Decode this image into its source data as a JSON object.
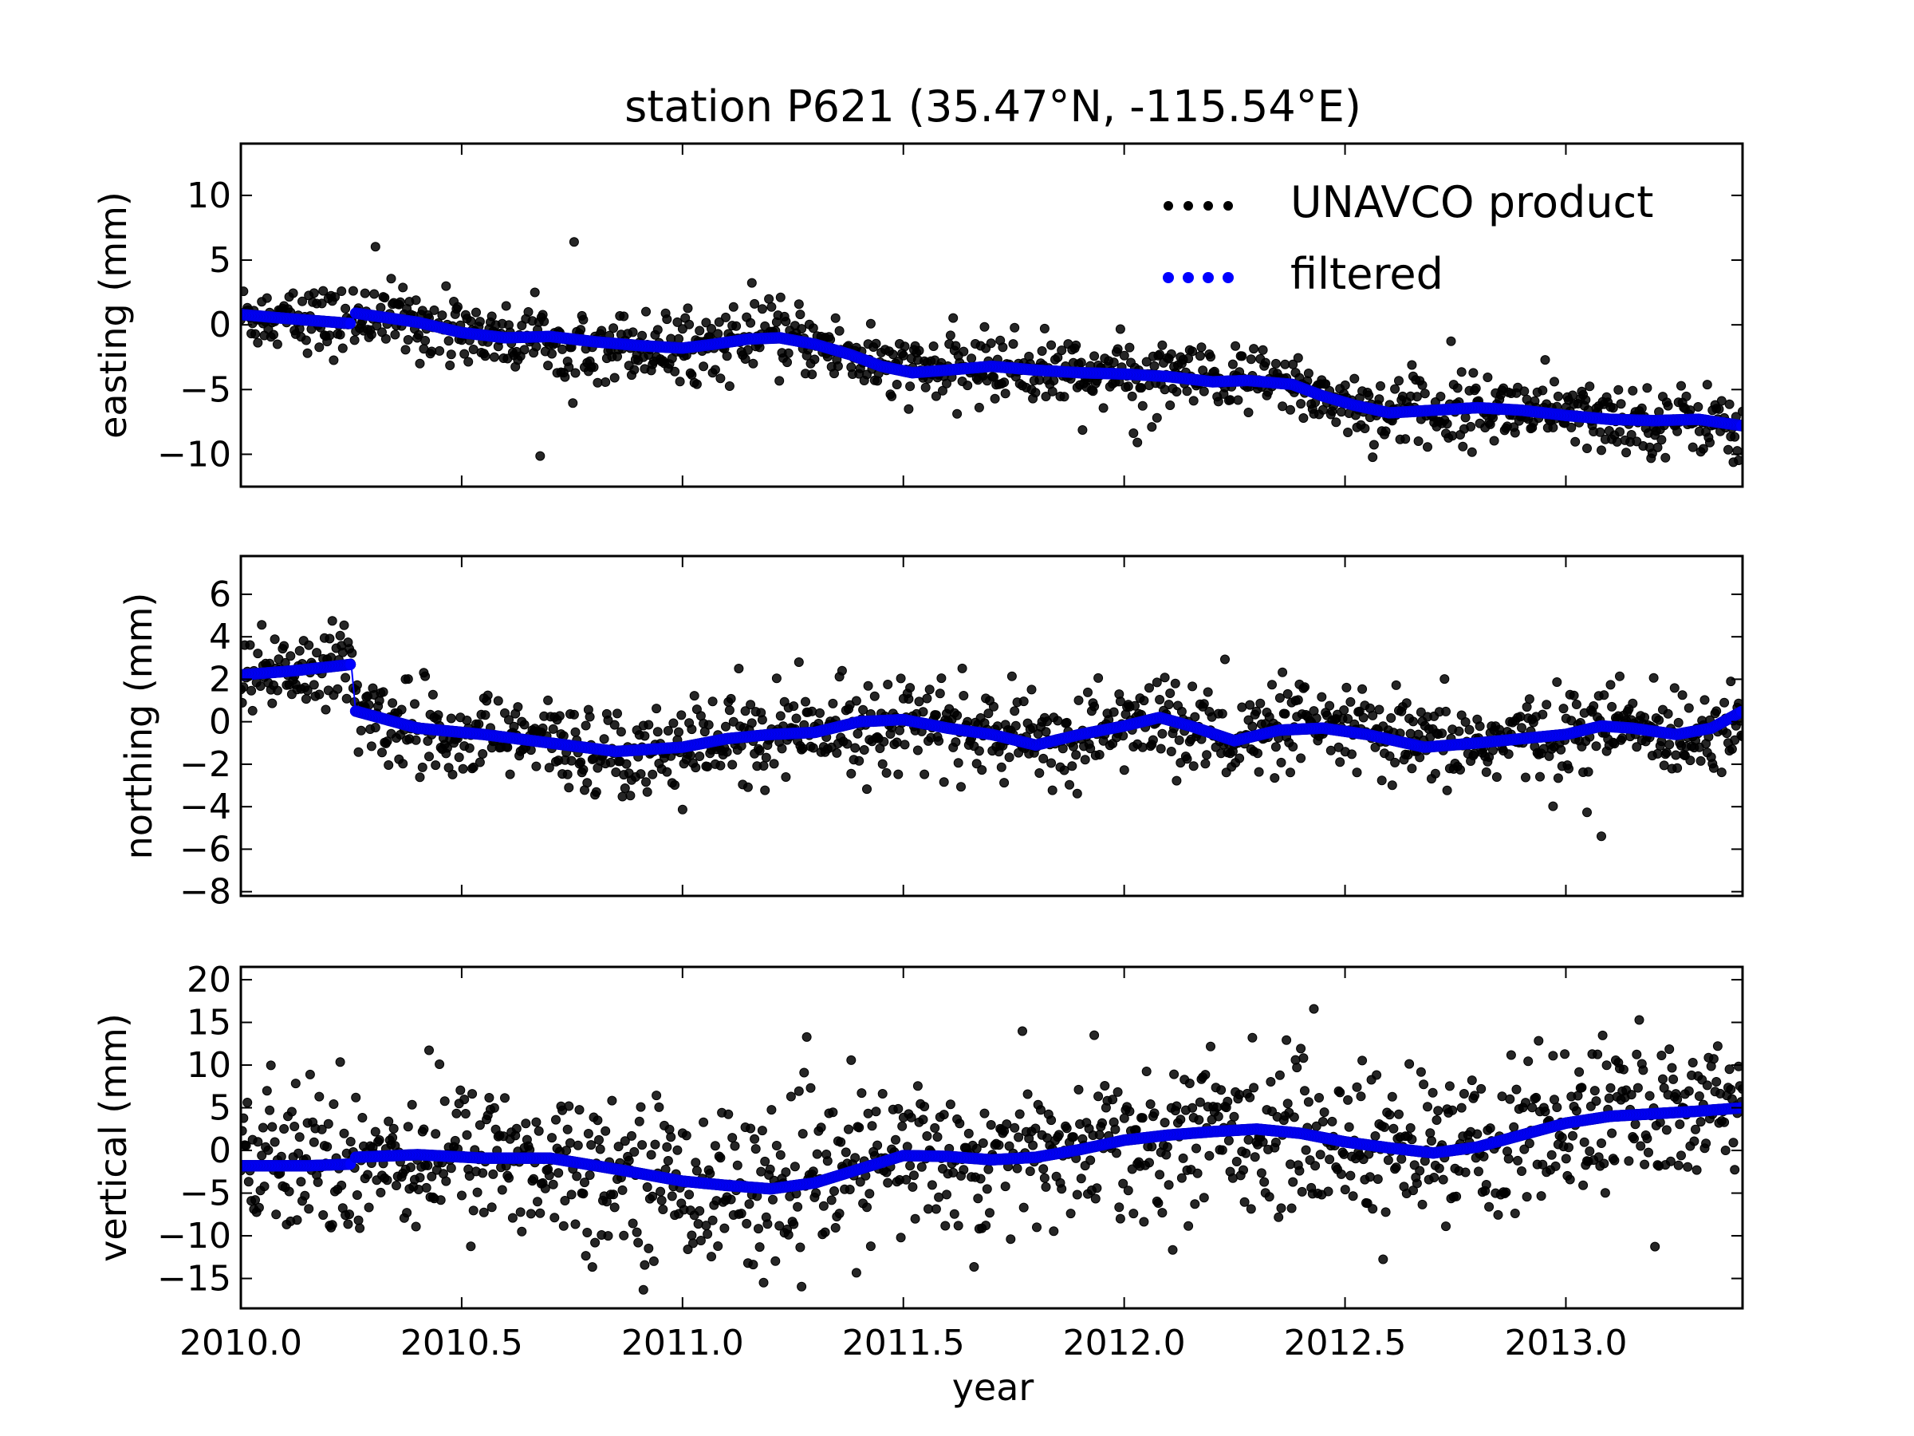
{
  "figure": {
    "title": "station P621 (35.47°N, -115.54°E)",
    "xlabel": "year"
  },
  "legend": {
    "placement": "upper-right",
    "entries": [
      "UNAVCO product",
      "filtered"
    ]
  },
  "colors": {
    "raw": "#000000",
    "filtered": "#0000ff"
  },
  "chart_data": [
    {
      "type": "scatter",
      "panel": "easting",
      "ylabel": "easting (mm)",
      "xlim": [
        2010.0,
        2013.4
      ],
      "ylim": [
        -12.5,
        14
      ],
      "xticks": [
        "2010.0",
        "2010.5",
        "2011.0",
        "2011.5",
        "2012.0",
        "2012.5",
        "2013.0"
      ],
      "yticks": [
        "10",
        "5",
        "0",
        "−10"
      ],
      "yticks_full": [
        "10",
        "5",
        "0",
        "−5",
        "−10"
      ],
      "grid": false,
      "series": [
        {
          "name": "filtered",
          "x": [
            2010.0,
            2010.1,
            2010.25,
            2010.26,
            2010.4,
            2010.5,
            2010.6,
            2010.7,
            2010.8,
            2010.9,
            2011.0,
            2011.07,
            2011.15,
            2011.22,
            2011.3,
            2011.38,
            2011.45,
            2011.52,
            2011.6,
            2011.7,
            2011.8,
            2011.9,
            2012.0,
            2012.1,
            2012.2,
            2012.28,
            2012.38,
            2012.45,
            2012.52,
            2012.6,
            2012.7,
            2012.8,
            2012.9,
            2013.0,
            2013.1,
            2013.2,
            2013.3,
            2013.4
          ],
          "y": [
            0.8,
            0.5,
            0.1,
            0.9,
            0.2,
            -0.6,
            -1.0,
            -0.9,
            -1.3,
            -1.6,
            -1.8,
            -1.5,
            -1.1,
            -1.0,
            -1.5,
            -2.3,
            -3.2,
            -3.7,
            -3.5,
            -3.2,
            -3.5,
            -3.7,
            -3.8,
            -4.0,
            -4.4,
            -4.3,
            -4.6,
            -5.5,
            -6.2,
            -6.8,
            -6.6,
            -6.4,
            -6.6,
            -7.0,
            -7.3,
            -7.4,
            -7.3,
            -7.8
          ]
        }
      ],
      "raw_noise_sd_mm": 1.3
    },
    {
      "type": "scatter",
      "panel": "northing",
      "ylabel": "northing (mm)",
      "xlim": [
        2010.0,
        2013.4
      ],
      "ylim": [
        -8.2,
        7.8
      ],
      "yticks": [
        "6",
        "4",
        "2",
        "0",
        "−2",
        "−4",
        "−6",
        "−8"
      ],
      "grid": false,
      "series": [
        {
          "name": "filtered",
          "x": [
            2010.0,
            2010.12,
            2010.25,
            2010.26,
            2010.4,
            2010.55,
            2010.7,
            2010.85,
            2011.0,
            2011.1,
            2011.2,
            2011.3,
            2011.4,
            2011.5,
            2011.6,
            2011.7,
            2011.8,
            2011.9,
            2012.0,
            2012.08,
            2012.15,
            2012.25,
            2012.35,
            2012.45,
            2012.55,
            2012.68,
            2012.8,
            2012.9,
            2013.0,
            2013.08,
            2013.15,
            2013.25,
            2013.33,
            2013.4
          ],
          "y": [
            2.2,
            2.4,
            2.7,
            0.5,
            -0.3,
            -0.6,
            -1.0,
            -1.4,
            -1.2,
            -0.8,
            -0.6,
            -0.5,
            0.0,
            0.1,
            -0.3,
            -0.6,
            -1.1,
            -0.6,
            -0.2,
            0.2,
            -0.2,
            -0.9,
            -0.4,
            -0.3,
            -0.6,
            -1.2,
            -1.0,
            -0.8,
            -0.6,
            -0.2,
            -0.3,
            -0.6,
            -0.3,
            0.5
          ]
        }
      ],
      "raw_noise_sd_mm": 1.0
    },
    {
      "type": "scatter",
      "panel": "vertical",
      "ylabel": "vertical (mm)",
      "xlim": [
        2010.0,
        2013.4
      ],
      "ylim": [
        -18.5,
        21.5
      ],
      "yticks": [
        "20",
        "15",
        "10",
        "5",
        "0",
        "−5",
        "−10",
        "−15"
      ],
      "grid": false,
      "series": [
        {
          "name": "filtered",
          "x": [
            2010.0,
            2010.15,
            2010.25,
            2010.26,
            2010.4,
            2010.55,
            2010.7,
            2010.85,
            2011.0,
            2011.1,
            2011.2,
            2011.3,
            2011.4,
            2011.5,
            2011.6,
            2011.7,
            2011.8,
            2011.9,
            2012.0,
            2012.1,
            2012.2,
            2012.3,
            2012.4,
            2012.5,
            2012.6,
            2012.7,
            2012.8,
            2012.9,
            2013.0,
            2013.1,
            2013.2,
            2013.3,
            2013.4
          ],
          "y": [
            -1.8,
            -1.8,
            -1.6,
            -0.8,
            -0.5,
            -0.9,
            -0.9,
            -2.2,
            -3.6,
            -4.1,
            -4.5,
            -3.8,
            -2.2,
            -0.6,
            -0.7,
            -1.1,
            -0.8,
            0.1,
            1.2,
            1.8,
            2.2,
            2.5,
            2.0,
            1.0,
            0.3,
            -0.3,
            0.4,
            1.8,
            3.2,
            4.0,
            4.3,
            4.6,
            5.0
          ]
        }
      ],
      "raw_noise_sd_mm": 4.5
    }
  ]
}
